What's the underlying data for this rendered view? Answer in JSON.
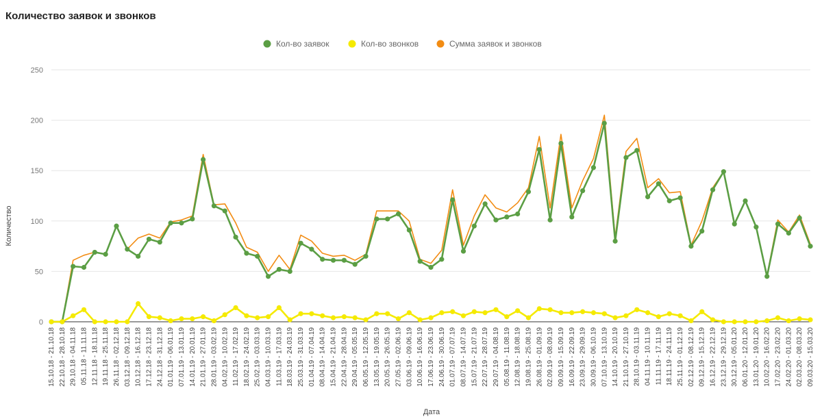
{
  "chart_data": {
    "type": "line",
    "title": "Количество заявок и звонков",
    "xlabel": "Дата",
    "ylabel": "Количество",
    "ylim": [
      0,
      250
    ],
    "yticks": [
      0,
      50,
      100,
      150,
      200,
      250
    ],
    "grid": true,
    "legend_position": "top-center",
    "categories": [
      "15.10.18 - 21.10.18",
      "22.10.18 - 28.10.18",
      "29.10.18 - 04.11.18",
      "05.11.18 - 11.11.18",
      "12.11.18 - 18.11.18",
      "19.11.18 - 25.11.18",
      "26.11.18 - 02.12.18",
      "03.12.18 - 09.12.18",
      "10.12.18 - 16.12.18",
      "17.12.18 - 23.12.18",
      "24.12.18 - 31.12.18",
      "01.01.19 - 06.01.19",
      "07.01.19 - 13.01.19",
      "14.01.19 - 20.01.19",
      "21.01.19 - 27.01.19",
      "28.01.19 - 03.02.19",
      "04.02.19 - 10.02.19",
      "11.02.19 - 17.02.19",
      "18.02.19 - 24.02.19",
      "25.02.19 - 03.03.19",
      "04.03.19 - 10.03.19",
      "11.03.19 - 17.03.19",
      "18.03.19 - 24.03.19",
      "25.03.19 - 31.03.19",
      "01.04.19 - 07.04.19",
      "08.04.19 - 14.04.19",
      "15.04.19 - 21.04.19",
      "22.04.19 - 28.04.19",
      "29.04.19 - 05.05.19",
      "06.05.19 - 12.05.19",
      "13.05.19 - 19.05.19",
      "20.05.19 - 26.05.19",
      "27.05.19 - 02.06.19",
      "03.06.19 - 09.06.19",
      "10.06.19 - 16.06.19",
      "17.06.19 - 23.06.19",
      "24.06.19 - 30.06.19",
      "01.07.19 - 07.07.19",
      "08.07.19 - 14.07.19",
      "15.07.19 - 21.07.19",
      "22.07.19 - 28.07.19",
      "29.07.19 - 04.08.19",
      "05.08.19 - 11.08.19",
      "12.08.19 - 18.08.19",
      "19.08.19 - 25.08.19",
      "26.08.19 - 01.09.19",
      "02.09.19 - 08.09.19",
      "09.09.19 - 15.09.19",
      "16.09.19 - 22.09.19",
      "23.09.19 - 29.09.19",
      "30.09.19 - 06.10.19",
      "07.10.19 - 13.10.19",
      "14.10.19 - 20.10.19",
      "21.10.19 - 27.10.19",
      "28.10.19 - 03.11.19",
      "04.11.19 - 10.11.19",
      "11.11.19 - 17.11.19",
      "18.11.19 - 24.11.19",
      "25.11.19 - 01.12.19",
      "02.12.19 - 08.12.19",
      "09.12.19 - 15.12.19",
      "16.12.19 - 22.12.19",
      "23.12.19 - 29.12.19",
      "30.12.19 - 05.01.20",
      "06.01.20 - 12.01.20",
      "13.01.20 - 19.01.20",
      "10.02.20 - 16.02.20",
      "17.02.20 - 23.02.20",
      "24.02.20 - 01.03.20",
      "02.03.20 - 08.03.20",
      "09.03.20 - 15.03.20"
    ],
    "series": [
      {
        "name": "Кол-во заявок",
        "color": "#5b9e44",
        "values": [
          0,
          0,
          55,
          54,
          69,
          67,
          95,
          72,
          65,
          82,
          79,
          98,
          98,
          102,
          161,
          115,
          110,
          84,
          68,
          65,
          45,
          52,
          50,
          78,
          72,
          62,
          61,
          61,
          57,
          65,
          102,
          102,
          107,
          91,
          60,
          54,
          62,
          121,
          70,
          95,
          117,
          101,
          104,
          107,
          129,
          171,
          101,
          177,
          104,
          130,
          153,
          197,
          80,
          163,
          170,
          124,
          137,
          120,
          123,
          75,
          90,
          131,
          149,
          97,
          120,
          94,
          45,
          97,
          88,
          103,
          75
        ]
      },
      {
        "name": "Кол-во звонков",
        "color": "#f5ea00",
        "values": [
          0,
          0,
          6,
          12,
          0,
          0,
          0,
          0,
          18,
          5,
          4,
          1,
          3,
          3,
          5,
          1,
          7,
          14,
          6,
          4,
          5,
          14,
          2,
          8,
          8,
          6,
          4,
          5,
          4,
          2,
          8,
          8,
          3,
          9,
          2,
          4,
          9,
          10,
          6,
          10,
          9,
          12,
          5,
          11,
          4,
          13,
          12,
          9,
          9,
          10,
          9,
          8,
          4,
          6,
          12,
          9,
          5,
          8,
          6,
          1,
          10,
          2,
          0,
          0,
          0,
          0,
          1,
          4,
          1,
          3,
          2
        ]
      },
      {
        "name": "Сумма заявок и звонков",
        "color": "#f28c13",
        "values": [
          0,
          0,
          61,
          66,
          69,
          67,
          95,
          72,
          83,
          87,
          83,
          99,
          101,
          105,
          166,
          116,
          117,
          98,
          74,
          69,
          50,
          66,
          52,
          86,
          80,
          68,
          65,
          66,
          61,
          67,
          110,
          110,
          110,
          100,
          62,
          58,
          71,
          131,
          76,
          105,
          126,
          113,
          109,
          118,
          133,
          184,
          113,
          186,
          113,
          140,
          162,
          205,
          84,
          169,
          182,
          133,
          142,
          128,
          129,
          76,
          100,
          133,
          149,
          97,
          120,
          94,
          46,
          101,
          89,
          106,
          77
        ]
      }
    ]
  }
}
